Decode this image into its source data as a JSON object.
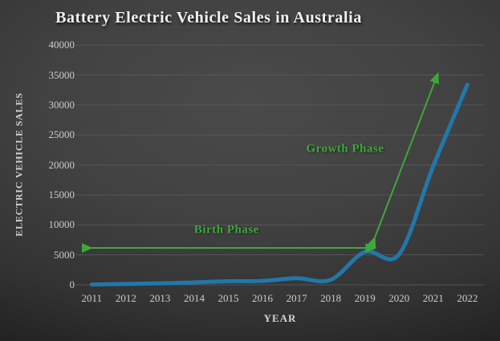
{
  "chart_data": {
    "type": "line",
    "title": "Battery Electric Vehicle Sales in Australia",
    "xlabel": "YEAR",
    "ylabel": "ELECTRIC VEHICLE SALES",
    "x": [
      2011,
      2012,
      2013,
      2014,
      2015,
      2016,
      2017,
      2018,
      2019,
      2020,
      2021,
      2022
    ],
    "values": [
      50,
      150,
      250,
      400,
      600,
      650,
      1100,
      850,
      5500,
      5100,
      19800,
      33400
    ],
    "ylim": [
      0,
      40000
    ],
    "ytick_step": 5000,
    "grid": true,
    "legend": "none",
    "smooth": true,
    "annotations": [
      {
        "id": "birth-phase",
        "label": "Birth Phase",
        "arrow": "horizontal-double",
        "x_from": 2011.0,
        "y_from": 6150,
        "x_to": 2019.31,
        "y_to": 6150,
        "label_x": 2014.95,
        "label_y": 9100
      },
      {
        "id": "growth-phase",
        "label": "Growth Phase",
        "arrow": "diagonal-double",
        "x_from": 2019.29,
        "y_from": 7900,
        "x_to": 2021.14,
        "y_to": 35300,
        "label_x": 2018.42,
        "label_y": 22600
      }
    ]
  },
  "colors": {
    "line": "#2277aa",
    "annotation_green": "#3fa83a",
    "grid": "#5c5c5c",
    "title_text": "#f2f2f2",
    "axis_text": "#cccccc",
    "background_center": "#4a4a4a",
    "background_edge": "#191919"
  }
}
